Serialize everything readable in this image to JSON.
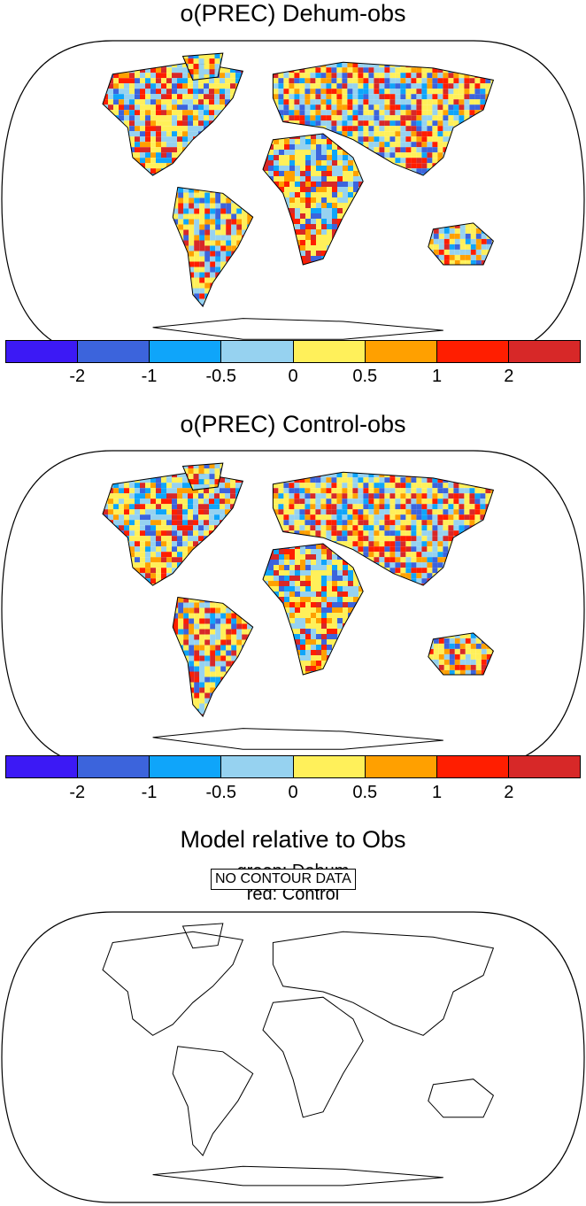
{
  "panels": [
    {
      "title": "o(PREC) Dehum-obs",
      "has_data": true
    },
    {
      "title": "o(PREC) Control-obs",
      "has_data": true
    },
    {
      "title": "Model relative to Obs",
      "has_data": false,
      "legend_lines": [
        "green: Dehum",
        "red: Control"
      ],
      "no_data_text": "NO CONTOUR DATA"
    }
  ],
  "colorbar": {
    "colors": [
      "#3c19f5",
      "#3c64dc",
      "#0fa5fa",
      "#96d2f0",
      "#fff05a",
      "#ffa000",
      "#ff1e00",
      "#d72828"
    ],
    "tick_labels": [
      "-2",
      "-1",
      "-0.5",
      "0",
      "0.5",
      "1",
      "2"
    ]
  },
  "projection": "Robinson"
}
